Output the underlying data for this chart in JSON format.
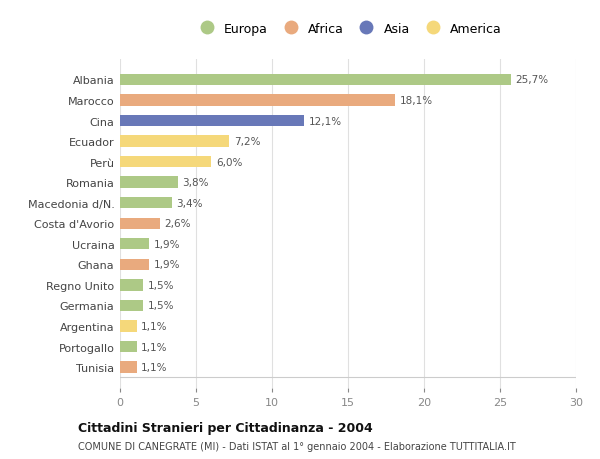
{
  "countries": [
    "Albania",
    "Marocco",
    "Cina",
    "Ecuador",
    "Perù",
    "Romania",
    "Macedonia d/N.",
    "Costa d'Avorio",
    "Ucraina",
    "Ghana",
    "Regno Unito",
    "Germania",
    "Argentina",
    "Portogallo",
    "Tunisia"
  ],
  "values": [
    25.7,
    18.1,
    12.1,
    7.2,
    6.0,
    3.8,
    3.4,
    2.6,
    1.9,
    1.9,
    1.5,
    1.5,
    1.1,
    1.1,
    1.1
  ],
  "labels": [
    "25,7%",
    "18,1%",
    "12,1%",
    "7,2%",
    "6,0%",
    "3,8%",
    "3,4%",
    "2,6%",
    "1,9%",
    "1,9%",
    "1,5%",
    "1,5%",
    "1,1%",
    "1,1%",
    "1,1%"
  ],
  "colors": [
    "#adc986",
    "#e9aa7e",
    "#6878b8",
    "#f5d87a",
    "#f5d87a",
    "#adc986",
    "#adc986",
    "#e9aa7e",
    "#adc986",
    "#e9aa7e",
    "#adc986",
    "#adc986",
    "#f5d87a",
    "#adc986",
    "#e9aa7e"
  ],
  "continent_colors": {
    "Europa": "#adc986",
    "Africa": "#e9aa7e",
    "Asia": "#6878b8",
    "America": "#f5d87a"
  },
  "title_bold": "Cittadini Stranieri per Cittadinanza - 2004",
  "subtitle": "COMUNE DI CANEGRATE (MI) - Dati ISTAT al 1° gennaio 2004 - Elaborazione TUTTITALIA.IT",
  "xlim": [
    0,
    30
  ],
  "xticks": [
    0,
    5,
    10,
    15,
    20,
    25,
    30
  ],
  "background_color": "#ffffff",
  "grid_color": "#e0e0e0",
  "bar_height": 0.55
}
